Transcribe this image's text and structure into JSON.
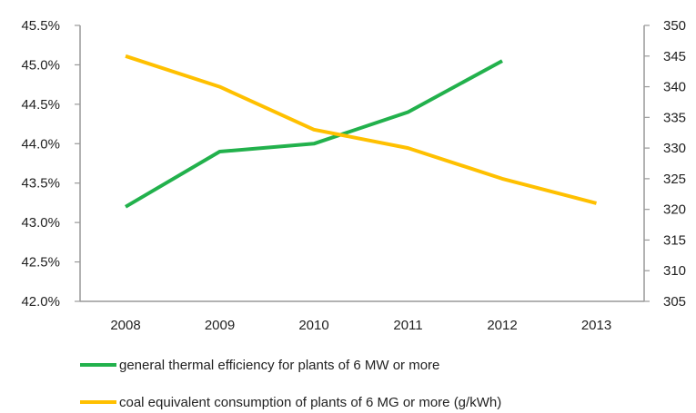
{
  "chart_data": {
    "type": "line",
    "x": [
      "2008",
      "2009",
      "2010",
      "2011",
      "2012",
      "2013"
    ],
    "y_left": {
      "ylim": [
        42.0,
        45.5
      ],
      "ticks": [
        42.0,
        42.5,
        43.0,
        43.5,
        44.0,
        44.5,
        45.0,
        45.5
      ],
      "tick_labels": [
        "42.0%",
        "42.5%",
        "43.0%",
        "43.5%",
        "44.0%",
        "44.5%",
        "45.0%",
        "45.5%"
      ]
    },
    "y_right": {
      "ylim": [
        305,
        350
      ],
      "ticks": [
        305,
        310,
        315,
        320,
        325,
        330,
        335,
        340,
        345,
        350
      ],
      "tick_labels": [
        "305",
        "310",
        "315",
        "320",
        "325",
        "330",
        "335",
        "340",
        "345",
        "350"
      ]
    },
    "series": [
      {
        "name": "general thermal efficiency for plants of 6 MW or more",
        "axis": "left",
        "color": "#22b14c",
        "values": [
          43.2,
          43.9,
          44.0,
          44.4,
          45.05,
          null
        ]
      },
      {
        "name": "coal equivalent consumption of plants of 6 MG or more (g/kWh)",
        "axis": "right",
        "color": "#ffc000",
        "values": [
          345,
          340,
          333,
          330,
          325,
          321
        ]
      }
    ],
    "grid": false,
    "legend_position": "bottom"
  }
}
